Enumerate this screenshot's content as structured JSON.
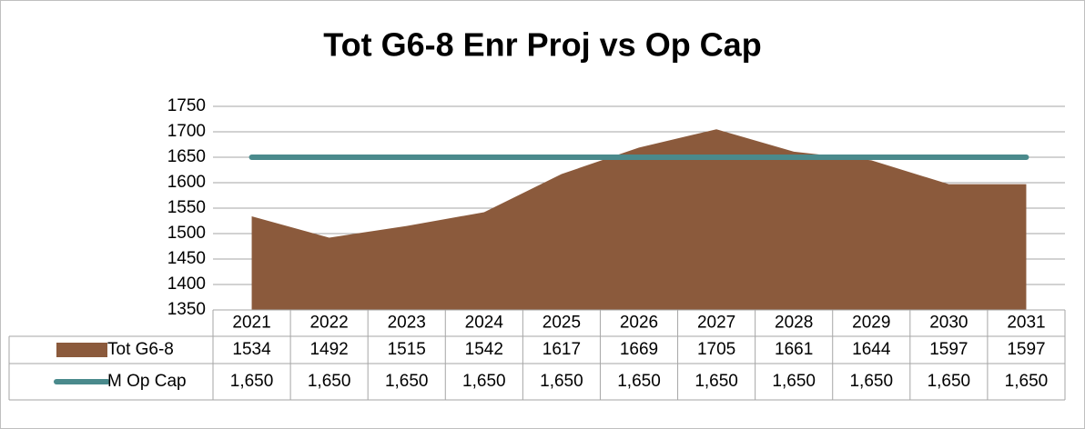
{
  "chart_data": {
    "type": "area",
    "title": "Tot G6-8 Enr Proj vs Op Cap",
    "categories": [
      "2021",
      "2022",
      "2023",
      "2024",
      "2025",
      "2026",
      "2027",
      "2028",
      "2029",
      "2030",
      "2031"
    ],
    "series": [
      {
        "name": "Tot G6-8",
        "type": "area",
        "color": "#8b5a3c",
        "values": [
          1534,
          1492,
          1515,
          1542,
          1617,
          1669,
          1705,
          1661,
          1644,
          1597,
          1597
        ]
      },
      {
        "name": "M Op Cap",
        "type": "line",
        "color": "#4a8a8c",
        "values": [
          1650,
          1650,
          1650,
          1650,
          1650,
          1650,
          1650,
          1650,
          1650,
          1650,
          1650
        ],
        "value_labels": [
          "1,650",
          "1,650",
          "1,650",
          "1,650",
          "1,650",
          "1,650",
          "1,650",
          "1,650",
          "1,650",
          "1,650",
          "1,650"
        ]
      }
    ],
    "ylim": [
      1350,
      1750
    ],
    "yticks": [
      1350,
      1400,
      1450,
      1500,
      1550,
      1600,
      1650,
      1700,
      1750
    ],
    "grid": true
  }
}
